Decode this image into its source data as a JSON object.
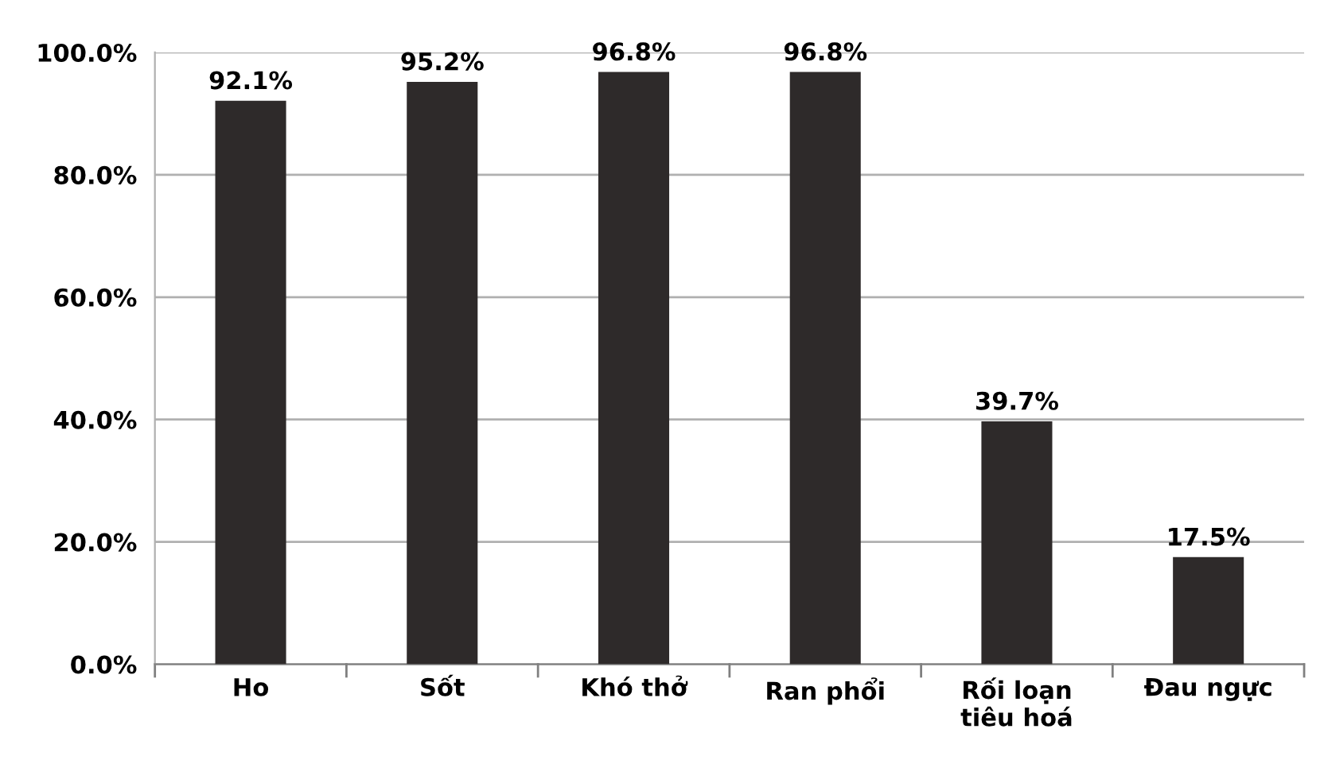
{
  "chart_data": {
    "type": "bar",
    "categories": [
      "Ho",
      "Sốt",
      "Khó thở",
      "Ran phổi",
      "Rối loạn\ntiêu hoá",
      "Đau ngực"
    ],
    "values": [
      92.1,
      95.2,
      96.8,
      96.8,
      39.7,
      17.5
    ],
    "value_labels": [
      "92.1%",
      "95.2%",
      "96.8%",
      "96.8%",
      "39.7%",
      "17.5%"
    ],
    "color": "#2e2a2a",
    "ylim": [
      0,
      100
    ],
    "yticks": [
      {
        "value": 0,
        "label": "0.0%"
      },
      {
        "value": 20,
        "label": "20.0%"
      },
      {
        "value": 40,
        "label": "40.0%"
      },
      {
        "value": 60,
        "label": "60.0%"
      },
      {
        "value": 80,
        "label": "80.0%"
      },
      {
        "value": 100,
        "label": "100.0%"
      }
    ],
    "grid": "y"
  }
}
